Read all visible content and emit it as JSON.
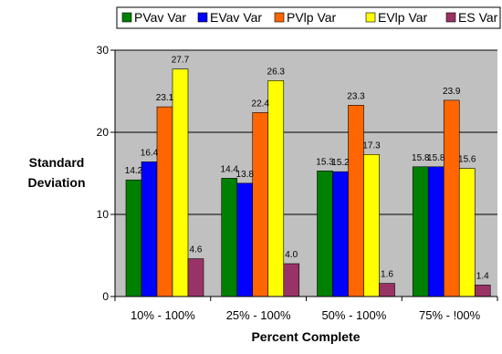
{
  "chart_data": {
    "type": "bar",
    "categories": [
      "10% - 100%",
      "25% - 100%",
      "50% - 100%",
      "75% - !00%"
    ],
    "series": [
      {
        "name": "PVav Var",
        "color": "#008000",
        "values": [
          14.2,
          14.4,
          15.3,
          15.8
        ]
      },
      {
        "name": "EVav Var",
        "color": "#0000ff",
        "values": [
          16.4,
          13.8,
          15.2,
          15.8
        ]
      },
      {
        "name": "PVlp Var",
        "color": "#ff6600",
        "values": [
          23.1,
          22.4,
          23.3,
          23.9
        ]
      },
      {
        "name": "EVlp Var",
        "color": "#ffff00",
        "values": [
          27.7,
          26.3,
          17.3,
          15.6
        ]
      },
      {
        "name": "ES Var",
        "color": "#993366",
        "values": [
          4.6,
          4.0,
          1.6,
          1.4
        ]
      }
    ],
    "data_labels": [
      [
        "14.2",
        "16.4",
        "23.1",
        "27.7",
        "4.6"
      ],
      [
        "14.4",
        "13.8",
        "22.4",
        "26.3",
        "4.0"
      ],
      [
        "15.3",
        "15.2",
        "23.3",
        "17.3",
        "1.6"
      ],
      [
        "15.8",
        "15.8",
        "23.9",
        "15.6",
        "1.4"
      ]
    ],
    "ylabel_lines": [
      "Standard",
      "Deviation"
    ],
    "xlabel": "Percent Complete",
    "ylim": [
      0,
      30
    ],
    "yticks": [
      "0",
      "10",
      "20",
      "30"
    ],
    "grid": true,
    "plot_background": "#c0c0c0",
    "legend_position": "top"
  }
}
